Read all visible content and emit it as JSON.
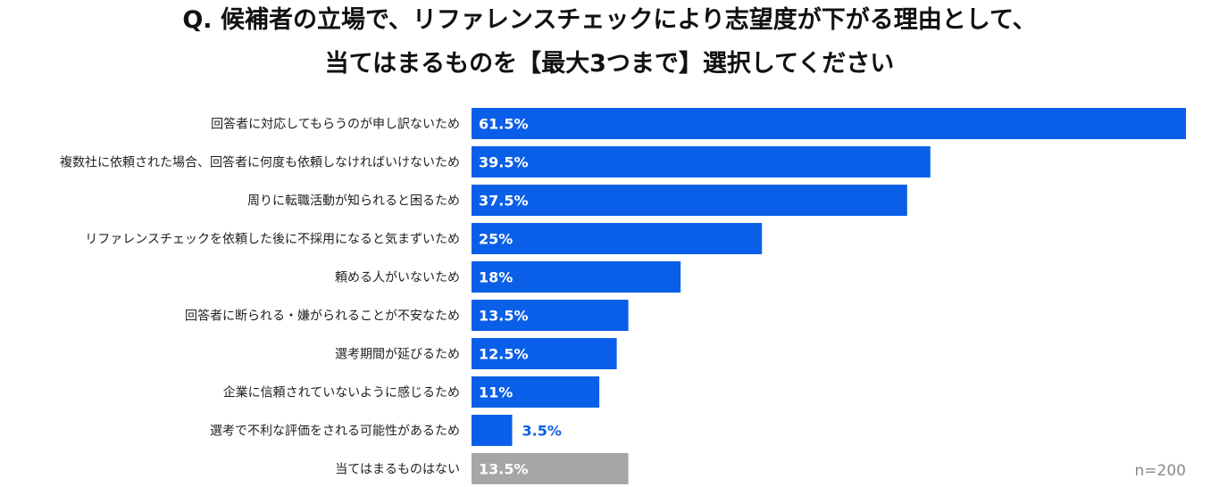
{
  "title_line1": "Q. 候補者の立場で、リファレンスチェックにより志望度が下がる理由として、",
  "title_line2": "当てはまるものを【最大3つまで】選択してください",
  "n_label": "n=200",
  "colors": {
    "bar": "#0a5fe8",
    "bar_none": "#a6a6a6",
    "value_inside": "#ffffff",
    "value_outside": "#0a5fe8"
  },
  "chart_data": {
    "type": "bar",
    "orientation": "horizontal",
    "categories": [
      "回答者に対応してもらうのが申し訳ないため",
      "複数社に依頼された場合、回答者に何度も依頼しなければいけないため",
      "周りに転職活動が知られると困るため",
      "リファレンスチェックを依頼した後に不採用になると気まずいため",
      "頼める人がいないため",
      "回答者に断られる・嫌がられることが不安なため",
      "選考期間が延びるため",
      "企業に信頼されていないように感じるため",
      "選考で不利な評価をされる可能性があるため",
      "当てはまるものはない"
    ],
    "values": [
      61.5,
      39.5,
      37.5,
      25,
      18,
      13.5,
      12.5,
      11,
      3.5,
      13.5
    ],
    "value_labels": [
      "61.5%",
      "39.5%",
      "37.5%",
      "25%",
      "18%",
      "13.5%",
      "12.5%",
      "11%",
      "3.5%",
      "13.5%"
    ],
    "highlight_gray_index": 9,
    "xlim": [
      0,
      61.5
    ],
    "grid": false,
    "legend": "none"
  }
}
